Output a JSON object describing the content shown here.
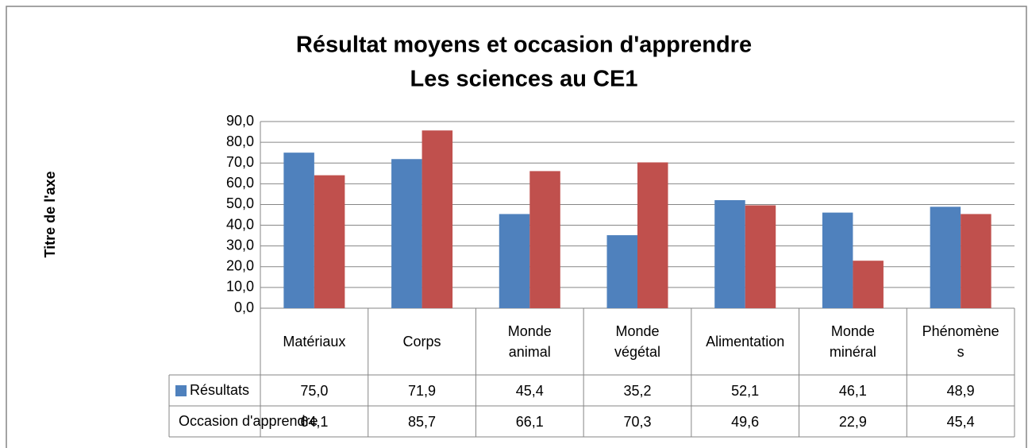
{
  "chart_data": {
    "type": "bar",
    "title": "Résultat moyens et occasion d'apprendre",
    "subtitle": "Les sciences au CE1",
    "y_axis_label": "Titre de l'axe",
    "categories": [
      "Matériaux",
      "Corps",
      "Monde animal",
      "Monde végétal",
      "Alimentation",
      "Monde minéral",
      "Phénomènes"
    ],
    "series": [
      {
        "name": "Résultats",
        "color": "#4f81bd",
        "values": [
          75.0,
          71.9,
          45.4,
          35.2,
          52.1,
          46.1,
          48.9
        ],
        "value_labels": [
          "75,0",
          "71,9",
          "45,4",
          "35,2",
          "52,1",
          "46,1",
          "48,9"
        ]
      },
      {
        "name": "Occasion d'apprendre",
        "color": "#c0504d",
        "values": [
          64.1,
          85.7,
          66.1,
          70.3,
          49.6,
          22.9,
          45.4
        ],
        "value_labels": [
          "64,1",
          "85,7",
          "66,1",
          "70,3",
          "49,6",
          "22,9",
          "45,4"
        ]
      }
    ],
    "ylim": [
      0,
      90
    ],
    "yticks": [
      {
        "value": 0,
        "label": "0,0"
      },
      {
        "value": 10,
        "label": "10,0"
      },
      {
        "value": 20,
        "label": "20,0"
      },
      {
        "value": 30,
        "label": "30,0"
      },
      {
        "value": 40,
        "label": "40,0"
      },
      {
        "value": 50,
        "label": "50,0"
      },
      {
        "value": 60,
        "label": "60,0"
      },
      {
        "value": 70,
        "label": "70,0"
      },
      {
        "value": 80,
        "label": "80,0"
      },
      {
        "value": 90,
        "label": "90,0"
      }
    ],
    "grid": true
  }
}
